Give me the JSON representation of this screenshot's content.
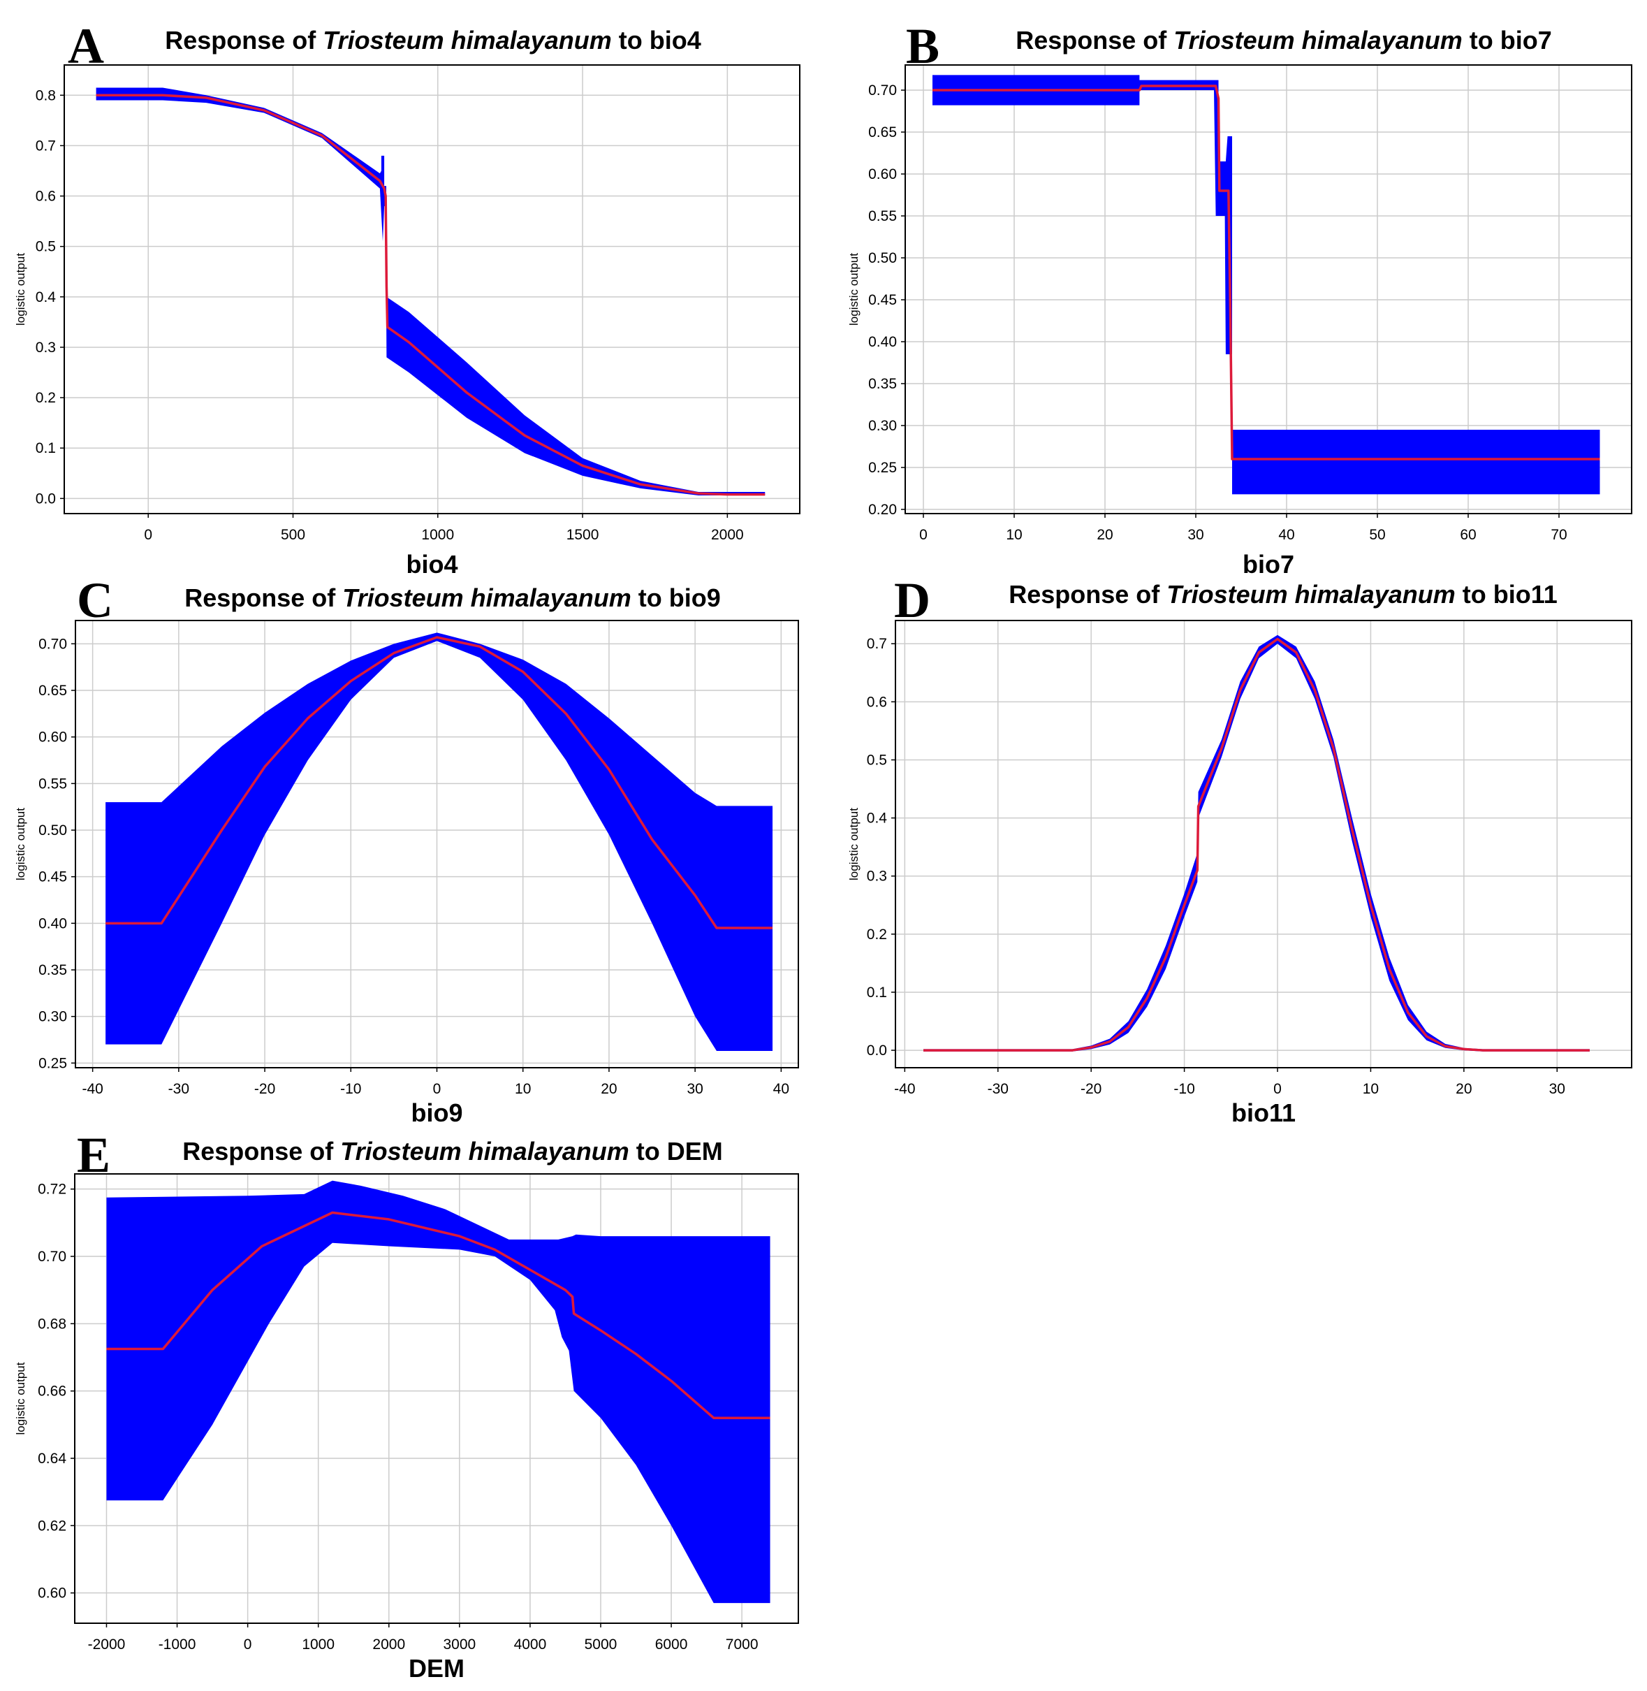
{
  "chart_data": [
    {
      "id": "A",
      "type": "area",
      "letter": "A",
      "title": {
        "prefix": "Response of ",
        "species": "Triosteum himalayanum",
        "suffix": " to bio4"
      },
      "xlabel": "bio4",
      "ylabel": "logistic output",
      "xlim": [
        -290,
        2250
      ],
      "ylim": [
        -0.03,
        0.86
      ],
      "xticks": [
        0,
        500,
        1000,
        1500,
        2000
      ],
      "xtick_labels": [
        "0",
        "500",
        "1000",
        "1500",
        "2000"
      ],
      "yticks": [
        0.0,
        0.1,
        0.2,
        0.3,
        0.4,
        0.5,
        0.6,
        0.7,
        0.8
      ],
      "ytick_labels": [
        "0.0",
        "0.1",
        "0.2",
        "0.3",
        "0.4",
        "0.5",
        "0.6",
        "0.7",
        "0.8"
      ],
      "mean": [
        [
          -180,
          0.8
        ],
        [
          50,
          0.8
        ],
        [
          200,
          0.795
        ],
        [
          400,
          0.77
        ],
        [
          600,
          0.72
        ],
        [
          800,
          0.63
        ],
        [
          815,
          0.615
        ],
        [
          820,
          0.6
        ],
        [
          823,
          0.42
        ],
        [
          826,
          0.34
        ],
        [
          900,
          0.31
        ],
        [
          1100,
          0.21
        ],
        [
          1300,
          0.125
        ],
        [
          1500,
          0.065
        ],
        [
          1700,
          0.028
        ],
        [
          1900,
          0.01
        ],
        [
          2000,
          0.008
        ],
        [
          2130,
          0.008
        ]
      ],
      "upper": [
        [
          -180,
          0.815
        ],
        [
          50,
          0.815
        ],
        [
          200,
          0.8
        ],
        [
          400,
          0.775
        ],
        [
          600,
          0.725
        ],
        [
          800,
          0.645
        ],
        [
          805,
          0.65
        ],
        [
          805,
          0.68
        ],
        [
          815,
          0.68
        ],
        [
          815,
          0.62
        ],
        [
          822,
          0.62
        ],
        [
          823,
          0.4
        ],
        [
          900,
          0.37
        ],
        [
          1100,
          0.27
        ],
        [
          1300,
          0.165
        ],
        [
          1500,
          0.08
        ],
        [
          1700,
          0.035
        ],
        [
          1900,
          0.013
        ],
        [
          2130,
          0.013
        ]
      ],
      "lower": [
        [
          -180,
          0.79
        ],
        [
          50,
          0.79
        ],
        [
          200,
          0.785
        ],
        [
          400,
          0.765
        ],
        [
          600,
          0.715
        ],
        [
          800,
          0.615
        ],
        [
          810,
          0.51
        ],
        [
          815,
          0.58
        ],
        [
          820,
          0.58
        ],
        [
          823,
          0.28
        ],
        [
          900,
          0.25
        ],
        [
          1100,
          0.16
        ],
        [
          1300,
          0.09
        ],
        [
          1500,
          0.045
        ],
        [
          1700,
          0.02
        ],
        [
          1900,
          0.006
        ],
        [
          2130,
          0.006
        ]
      ]
    },
    {
      "id": "B",
      "type": "area",
      "letter": "B",
      "title": {
        "prefix": "Response of ",
        "species": "Triosteum himalayanum",
        "suffix": " to bio7"
      },
      "xlabel": "bio7",
      "ylabel": "logistic output",
      "xlim": [
        -2,
        78
      ],
      "ylim": [
        0.195,
        0.73
      ],
      "xticks": [
        0,
        10,
        20,
        30,
        40,
        50,
        60,
        70
      ],
      "xtick_labels": [
        "0",
        "10",
        "20",
        "30",
        "40",
        "50",
        "60",
        "70"
      ],
      "yticks": [
        0.2,
        0.25,
        0.3,
        0.35,
        0.4,
        0.45,
        0.5,
        0.55,
        0.6,
        0.65,
        0.7
      ],
      "ytick_labels": [
        "0.20",
        "0.25",
        "0.30",
        "0.35",
        "0.40",
        "0.45",
        "0.50",
        "0.55",
        "0.60",
        "0.65",
        "0.70"
      ],
      "mean": [
        [
          1,
          0.7
        ],
        [
          23.8,
          0.7
        ],
        [
          24,
          0.705
        ],
        [
          32.2,
          0.705
        ],
        [
          32.5,
          0.69
        ],
        [
          32.6,
          0.58
        ],
        [
          33,
          0.58
        ],
        [
          33.6,
          0.58
        ],
        [
          33.8,
          0.44
        ],
        [
          34,
          0.26
        ],
        [
          74.5,
          0.26
        ]
      ],
      "upper": [
        [
          1,
          0.718
        ],
        [
          23.8,
          0.718
        ],
        [
          23.8,
          0.712
        ],
        [
          32.5,
          0.712
        ],
        [
          32.5,
          0.615
        ],
        [
          33.3,
          0.615
        ],
        [
          33.5,
          0.645
        ],
        [
          34,
          0.645
        ],
        [
          34,
          0.295
        ],
        [
          74.5,
          0.295
        ]
      ],
      "lower": [
        [
          1,
          0.682
        ],
        [
          23.8,
          0.682
        ],
        [
          23.8,
          0.7
        ],
        [
          32,
          0.7
        ],
        [
          32.2,
          0.55
        ],
        [
          33.2,
          0.55
        ],
        [
          33.3,
          0.385
        ],
        [
          34,
          0.385
        ],
        [
          34,
          0.218
        ],
        [
          74.5,
          0.218
        ]
      ]
    },
    {
      "id": "C",
      "type": "area",
      "letter": "C",
      "title": {
        "prefix": "Response of ",
        "species": "Triosteum himalayanum",
        "suffix": " to bio9"
      },
      "xlabel": "bio9",
      "ylabel": "logistic output",
      "xlim": [
        -42,
        42
      ],
      "ylim": [
        0.245,
        0.725
      ],
      "xticks": [
        -40,
        -30,
        -20,
        -10,
        0,
        10,
        20,
        30,
        40
      ],
      "xtick_labels": [
        "-40",
        "-30",
        "-20",
        "-10",
        "0",
        "10",
        "20",
        "30",
        "40"
      ],
      "yticks": [
        0.25,
        0.3,
        0.35,
        0.4,
        0.45,
        0.5,
        0.55,
        0.6,
        0.65,
        0.7
      ],
      "ytick_labels": [
        "0.25",
        "0.30",
        "0.35",
        "0.40",
        "0.45",
        "0.50",
        "0.55",
        "0.60",
        "0.65",
        "0.70"
      ],
      "mean": [
        [
          -38.5,
          0.4
        ],
        [
          -32,
          0.4
        ],
        [
          -25,
          0.5
        ],
        [
          -20,
          0.568
        ],
        [
          -15,
          0.62
        ],
        [
          -10,
          0.66
        ],
        [
          -5,
          0.69
        ],
        [
          0,
          0.707
        ],
        [
          5,
          0.697
        ],
        [
          10,
          0.67
        ],
        [
          15,
          0.625
        ],
        [
          20,
          0.565
        ],
        [
          25,
          0.49
        ],
        [
          30,
          0.43
        ],
        [
          32.5,
          0.395
        ],
        [
          39,
          0.395
        ]
      ],
      "upper": [
        [
          -38.5,
          0.53
        ],
        [
          -32,
          0.53
        ],
        [
          -25,
          0.59
        ],
        [
          -20,
          0.626
        ],
        [
          -15,
          0.657
        ],
        [
          -10,
          0.682
        ],
        [
          -5,
          0.7
        ],
        [
          0,
          0.712
        ],
        [
          5,
          0.7
        ],
        [
          10,
          0.683
        ],
        [
          15,
          0.657
        ],
        [
          20,
          0.62
        ],
        [
          25,
          0.58
        ],
        [
          30,
          0.54
        ],
        [
          32.5,
          0.526
        ],
        [
          39,
          0.526
        ]
      ],
      "lower": [
        [
          -38.5,
          0.27
        ],
        [
          -32,
          0.27
        ],
        [
          -25,
          0.4
        ],
        [
          -20,
          0.495
        ],
        [
          -15,
          0.575
        ],
        [
          -10,
          0.64
        ],
        [
          -5,
          0.685
        ],
        [
          0,
          0.703
        ],
        [
          5,
          0.685
        ],
        [
          10,
          0.64
        ],
        [
          15,
          0.575
        ],
        [
          20,
          0.495
        ],
        [
          25,
          0.4
        ],
        [
          30,
          0.3
        ],
        [
          32.5,
          0.263
        ],
        [
          39,
          0.263
        ]
      ]
    },
    {
      "id": "D",
      "type": "area",
      "letter": "D",
      "title": {
        "prefix": "Response of ",
        "species": "Triosteum himalayanum",
        "suffix": " to bio11"
      },
      "xlabel": "bio11",
      "ylabel": "logistic output",
      "xlim": [
        -41,
        38
      ],
      "ylim": [
        -0.03,
        0.74
      ],
      "xticks": [
        -40,
        -30,
        -20,
        -10,
        0,
        10,
        20,
        30
      ],
      "xtick_labels": [
        "-40",
        "-30",
        "-20",
        "-10",
        "0",
        "10",
        "20",
        "30"
      ],
      "yticks": [
        0.0,
        0.1,
        0.2,
        0.3,
        0.4,
        0.5,
        0.6,
        0.7
      ],
      "ytick_labels": [
        "0.0",
        "0.1",
        "0.2",
        "0.3",
        "0.4",
        "0.5",
        "0.6",
        "0.7"
      ],
      "mean": [
        [
          -38,
          0.0
        ],
        [
          -22,
          0.0
        ],
        [
          -20,
          0.005
        ],
        [
          -18,
          0.015
        ],
        [
          -16,
          0.04
        ],
        [
          -14,
          0.09
        ],
        [
          -12,
          0.16
        ],
        [
          -10,
          0.25
        ],
        [
          -8.6,
          0.31
        ],
        [
          -8.5,
          0.42
        ],
        [
          -6,
          0.52
        ],
        [
          -4,
          0.62
        ],
        [
          -2,
          0.685
        ],
        [
          0,
          0.708
        ],
        [
          2,
          0.685
        ],
        [
          4,
          0.62
        ],
        [
          6,
          0.52
        ],
        [
          8,
          0.38
        ],
        [
          10,
          0.25
        ],
        [
          12,
          0.14
        ],
        [
          14,
          0.065
        ],
        [
          16,
          0.024
        ],
        [
          18,
          0.007
        ],
        [
          20,
          0.002
        ],
        [
          22,
          0.0
        ],
        [
          33.5,
          0.0
        ]
      ],
      "upper": [
        [
          -38,
          0.002
        ],
        [
          -22,
          0.002
        ],
        [
          -20,
          0.008
        ],
        [
          -18,
          0.02
        ],
        [
          -16,
          0.05
        ],
        [
          -14,
          0.105
        ],
        [
          -12,
          0.18
        ],
        [
          -10,
          0.27
        ],
        [
          -8.6,
          0.34
        ],
        [
          -8.5,
          0.445
        ],
        [
          -6,
          0.535
        ],
        [
          -4,
          0.635
        ],
        [
          -2,
          0.695
        ],
        [
          0,
          0.715
        ],
        [
          2,
          0.695
        ],
        [
          4,
          0.635
        ],
        [
          6,
          0.535
        ],
        [
          8,
          0.4
        ],
        [
          10,
          0.27
        ],
        [
          12,
          0.16
        ],
        [
          14,
          0.078
        ],
        [
          16,
          0.032
        ],
        [
          18,
          0.011
        ],
        [
          20,
          0.004
        ],
        [
          22,
          0.002
        ],
        [
          33.5,
          0.002
        ]
      ],
      "lower": [
        [
          -38,
          -0.002
        ],
        [
          -22,
          -0.002
        ],
        [
          -20,
          0.002
        ],
        [
          -18,
          0.01
        ],
        [
          -16,
          0.03
        ],
        [
          -14,
          0.075
        ],
        [
          -12,
          0.14
        ],
        [
          -10,
          0.23
        ],
        [
          -8.6,
          0.29
        ],
        [
          -8.5,
          0.4
        ],
        [
          -6,
          0.505
        ],
        [
          -4,
          0.605
        ],
        [
          -2,
          0.675
        ],
        [
          0,
          0.7
        ],
        [
          2,
          0.675
        ],
        [
          4,
          0.605
        ],
        [
          6,
          0.505
        ],
        [
          8,
          0.36
        ],
        [
          10,
          0.23
        ],
        [
          12,
          0.12
        ],
        [
          14,
          0.052
        ],
        [
          16,
          0.017
        ],
        [
          18,
          0.004
        ],
        [
          20,
          0.0
        ],
        [
          22,
          -0.002
        ],
        [
          33.5,
          -0.002
        ]
      ]
    },
    {
      "id": "E",
      "type": "area",
      "letter": "E",
      "title": {
        "prefix": "Response of ",
        "species": "Triosteum himalayanum",
        "suffix": " to DEM"
      },
      "xlabel": "DEM",
      "ylabel": "logistic output",
      "xlim": [
        -2450,
        7800
      ],
      "ylim": [
        0.591,
        0.7245
      ],
      "xticks": [
        -2000,
        -1000,
        0,
        1000,
        2000,
        3000,
        4000,
        5000,
        6000,
        7000
      ],
      "xtick_labels": [
        "-2000",
        "-1000",
        "0",
        "1000",
        "2000",
        "3000",
        "4000",
        "5000",
        "6000",
        "7000"
      ],
      "yticks": [
        0.6,
        0.62,
        0.64,
        0.66,
        0.68,
        0.7,
        0.72
      ],
      "ytick_labels": [
        "0.60",
        "0.62",
        "0.64",
        "0.66",
        "0.68",
        "0.70",
        "0.72"
      ],
      "mean": [
        [
          -2000,
          0.6725
        ],
        [
          -1200,
          0.6725
        ],
        [
          -500,
          0.69
        ],
        [
          200,
          0.703
        ],
        [
          1200,
          0.713
        ],
        [
          2000,
          0.711
        ],
        [
          3000,
          0.706
        ],
        [
          3500,
          0.702
        ],
        [
          4000,
          0.696
        ],
        [
          4500,
          0.69
        ],
        [
          4600,
          0.688
        ],
        [
          4620,
          0.683
        ],
        [
          5000,
          0.678
        ],
        [
          5500,
          0.671
        ],
        [
          6000,
          0.663
        ],
        [
          6600,
          0.652
        ],
        [
          7400,
          0.652
        ]
      ],
      "upper": [
        [
          -2000,
          0.7175
        ],
        [
          -800,
          0.7178
        ],
        [
          0,
          0.718
        ],
        [
          800,
          0.7185
        ],
        [
          1200,
          0.7225
        ],
        [
          1600,
          0.721
        ],
        [
          2200,
          0.718
        ],
        [
          2800,
          0.714
        ],
        [
          3300,
          0.709
        ],
        [
          3700,
          0.705
        ],
        [
          4400,
          0.705
        ],
        [
          4600,
          0.706
        ],
        [
          4650,
          0.7065
        ],
        [
          5000,
          0.706
        ],
        [
          7400,
          0.706
        ]
      ],
      "lower": [
        [
          -2000,
          0.6275
        ],
        [
          -1200,
          0.6275
        ],
        [
          -500,
          0.65
        ],
        [
          300,
          0.68
        ],
        [
          800,
          0.697
        ],
        [
          1200,
          0.704
        ],
        [
          2000,
          0.703
        ],
        [
          3000,
          0.702
        ],
        [
          3500,
          0.7
        ],
        [
          4000,
          0.693
        ],
        [
          4350,
          0.684
        ],
        [
          4450,
          0.676
        ],
        [
          4550,
          0.672
        ],
        [
          4620,
          0.66
        ],
        [
          5000,
          0.652
        ],
        [
          5500,
          0.638
        ],
        [
          6000,
          0.62
        ],
        [
          6600,
          0.597
        ],
        [
          7400,
          0.597
        ]
      ]
    }
  ]
}
